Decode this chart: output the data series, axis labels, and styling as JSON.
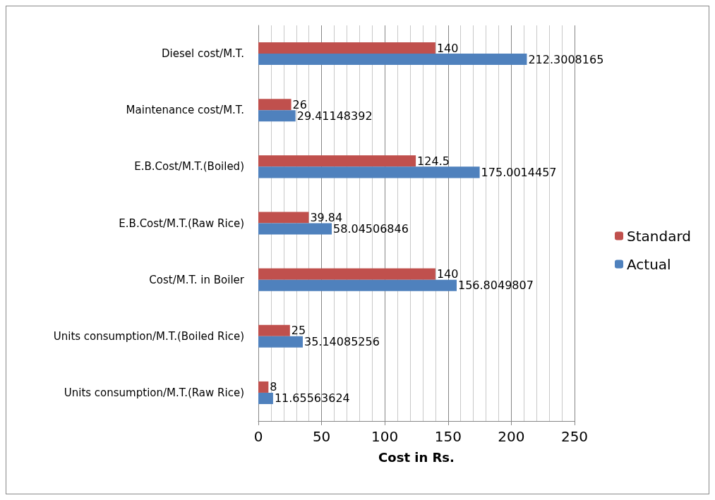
{
  "chart_data": {
    "type": "bar",
    "orientation": "horizontal",
    "xlabel": "Cost in Rs.",
    "categories": [
      "Diesel cost/M.T.",
      "Maintenance cost/M.T.",
      "E.B.Cost/M.T.(Boiled)",
      "E.B.Cost/M.T.(Raw Rice)",
      "Cost/M.T. in Boiler",
      "Units consumption/M.T.(Boiled Rice)",
      "Units consumption/M.T.(Raw Rice)"
    ],
    "series": [
      {
        "name": "Standard",
        "color": "#c0504d",
        "values": [
          140,
          26,
          124.5,
          39.84,
          140,
          25,
          8
        ]
      },
      {
        "name": "Actual",
        "color": "#4f81bd",
        "values": [
          212.3008165,
          29.41148392,
          175.0014457,
          58.04506846,
          156.8049807,
          35.14085256,
          11.65563624
        ]
      }
    ],
    "xlim": [
      0,
      250
    ],
    "xticks": [
      0,
      50,
      100,
      150,
      200,
      250
    ],
    "grid": "x",
    "legend": "right",
    "data_labels": true
  }
}
